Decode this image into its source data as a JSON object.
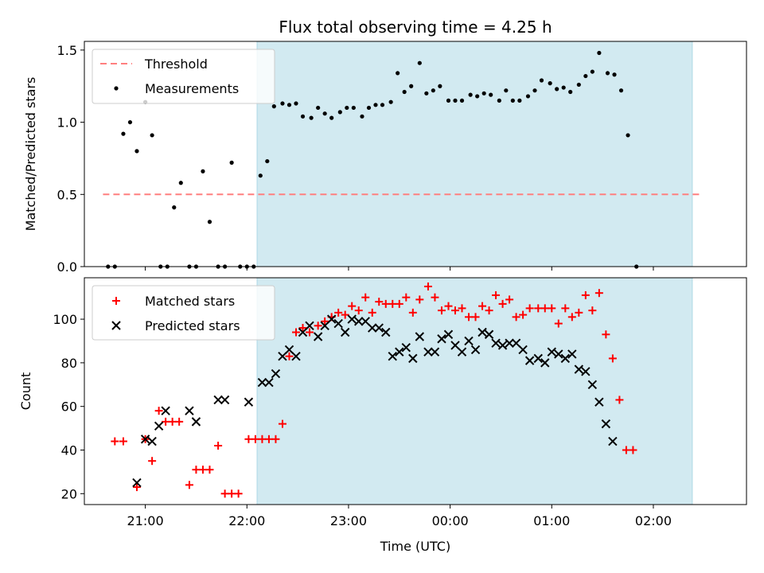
{
  "title": "Flux total observing time = 4.25 h",
  "colors": {
    "background": "#ffffff",
    "span": "#add8e6",
    "threshold": "#ff7f7f",
    "measurement": "#000000",
    "matched": "#ff0000",
    "predicted": "#000000"
  },
  "chart_data": [
    {
      "type": "scatter",
      "ylabel": "Matched/Predicted stars",
      "ylim": [
        0,
        1.56
      ],
      "yticks": [
        0,
        0.5,
        1.0,
        1.5
      ],
      "yticklabels": [
        "0.0",
        "0.5",
        "1.0",
        "1.5"
      ],
      "xlim": [
        "20:24",
        "02:55"
      ],
      "shaded_span": [
        "22:06",
        "02:23"
      ],
      "legend": {
        "placement": "top-left",
        "entries": [
          {
            "label": "Threshold",
            "style": "dashed-line"
          },
          {
            "label": "Measurements",
            "style": "dot"
          }
        ]
      },
      "threshold": {
        "y": 0.5,
        "x_range": [
          "20:35",
          "02:28"
        ]
      },
      "series": [
        {
          "name": "Measurements",
          "points": [
            [
              "20:38",
              0.0
            ],
            [
              "20:42",
              0.0
            ],
            [
              "20:47",
              0.92
            ],
            [
              "20:51",
              1.0
            ],
            [
              "20:55",
              0.8
            ],
            [
              "21:00",
              1.14
            ],
            [
              "21:04",
              0.91
            ],
            [
              "21:09",
              0.0
            ],
            [
              "21:13",
              0.0
            ],
            [
              "21:17",
              0.41
            ],
            [
              "21:21",
              0.58
            ],
            [
              "21:26",
              0.0
            ],
            [
              "21:30",
              0.0
            ],
            [
              "21:34",
              0.66
            ],
            [
              "21:38",
              0.31
            ],
            [
              "21:43",
              0.0
            ],
            [
              "21:47",
              0.0
            ],
            [
              "21:51",
              0.72
            ],
            [
              "21:56",
              0.0
            ],
            [
              "22:00",
              0.0
            ],
            [
              "22:04",
              0.0
            ],
            [
              "22:08",
              0.63
            ],
            [
              "22:12",
              0.73
            ],
            [
              "22:16",
              1.11
            ],
            [
              "22:21",
              1.13
            ],
            [
              "22:25",
              1.12
            ],
            [
              "22:29",
              1.13
            ],
            [
              "22:33",
              1.04
            ],
            [
              "22:38",
              1.03
            ],
            [
              "22:42",
              1.1
            ],
            [
              "22:46",
              1.06
            ],
            [
              "22:50",
              1.03
            ],
            [
              "22:55",
              1.07
            ],
            [
              "22:59",
              1.1
            ],
            [
              "23:03",
              1.1
            ],
            [
              "23:08",
              1.04
            ],
            [
              "23:12",
              1.1
            ],
            [
              "23:16",
              1.12
            ],
            [
              "23:20",
              1.12
            ],
            [
              "23:25",
              1.14
            ],
            [
              "23:29",
              1.34
            ],
            [
              "23:33",
              1.21
            ],
            [
              "23:37",
              1.25
            ],
            [
              "23:42",
              1.41
            ],
            [
              "23:46",
              1.2
            ],
            [
              "23:50",
              1.22
            ],
            [
              "23:54",
              1.25
            ],
            [
              "23:59",
              1.15
            ],
            [
              "00:03",
              1.15
            ],
            [
              "00:07",
              1.15
            ],
            [
              "00:12",
              1.19
            ],
            [
              "00:16",
              1.18
            ],
            [
              "00:20",
              1.2
            ],
            [
              "00:24",
              1.19
            ],
            [
              "00:29",
              1.15
            ],
            [
              "00:33",
              1.22
            ],
            [
              "00:37",
              1.15
            ],
            [
              "00:41",
              1.15
            ],
            [
              "00:46",
              1.18
            ],
            [
              "00:50",
              1.22
            ],
            [
              "00:54",
              1.29
            ],
            [
              "00:59",
              1.27
            ],
            [
              "01:03",
              1.23
            ],
            [
              "01:07",
              1.24
            ],
            [
              "01:11",
              1.21
            ],
            [
              "01:16",
              1.26
            ],
            [
              "01:20",
              1.32
            ],
            [
              "01:24",
              1.35
            ],
            [
              "01:28",
              1.48
            ],
            [
              "01:33",
              1.34
            ],
            [
              "01:37",
              1.33
            ],
            [
              "01:41",
              1.22
            ],
            [
              "01:45",
              0.91
            ],
            [
              "01:50",
              0.0
            ]
          ]
        }
      ]
    },
    {
      "type": "scatter",
      "xlabel": "Time (UTC)",
      "ylabel": "Count",
      "ylim": [
        15,
        119
      ],
      "yticks": [
        20,
        40,
        60,
        80,
        100
      ],
      "yticklabels": [
        "20",
        "40",
        "60",
        "80",
        "100"
      ],
      "xlim": [
        "20:24",
        "02:55"
      ],
      "xticks": [
        "21:00",
        "22:00",
        "23:00",
        "00:00",
        "01:00",
        "02:00"
      ],
      "shaded_span": [
        "22:06",
        "02:23"
      ],
      "legend": {
        "placement": "top-left",
        "entries": [
          {
            "label": "Matched stars",
            "style": "plus"
          },
          {
            "label": "Predicted stars",
            "style": "x"
          }
        ]
      },
      "series": [
        {
          "name": "Matched stars",
          "points": [
            [
              "20:42",
              44
            ],
            [
              "20:47",
              44
            ],
            [
              "20:55",
              23
            ],
            [
              "21:00",
              45
            ],
            [
              "21:04",
              35
            ],
            [
              "21:08",
              58
            ],
            [
              "21:12",
              53
            ],
            [
              "21:16",
              53
            ],
            [
              "21:20",
              53
            ],
            [
              "21:26",
              24
            ],
            [
              "21:30",
              31
            ],
            [
              "21:34",
              31
            ],
            [
              "21:38",
              31
            ],
            [
              "21:43",
              42
            ],
            [
              "21:47",
              20
            ],
            [
              "21:51",
              20
            ],
            [
              "21:55",
              20
            ],
            [
              "22:01",
              45
            ],
            [
              "22:05",
              45
            ],
            [
              "22:09",
              45
            ],
            [
              "22:13",
              45
            ],
            [
              "22:17",
              45
            ],
            [
              "22:21",
              52
            ],
            [
              "22:25",
              83
            ],
            [
              "22:29",
              94
            ],
            [
              "22:33",
              96
            ],
            [
              "22:37",
              94
            ],
            [
              "22:42",
              97
            ],
            [
              "22:46",
              99
            ],
            [
              "22:50",
              101
            ],
            [
              "22:54",
              103
            ],
            [
              "22:58",
              102
            ],
            [
              "23:02",
              106
            ],
            [
              "23:06",
              104
            ],
            [
              "23:10",
              110
            ],
            [
              "23:14",
              103
            ],
            [
              "23:18",
              108
            ],
            [
              "23:22",
              107
            ],
            [
              "23:26",
              107
            ],
            [
              "23:30",
              107
            ],
            [
              "23:34",
              110
            ],
            [
              "23:38",
              103
            ],
            [
              "23:42",
              109
            ],
            [
              "23:47",
              115
            ],
            [
              "23:51",
              110
            ],
            [
              "23:55",
              104
            ],
            [
              "23:59",
              106
            ],
            [
              "00:03",
              104
            ],
            [
              "00:07",
              105
            ],
            [
              "00:11",
              101
            ],
            [
              "00:15",
              101
            ],
            [
              "00:19",
              106
            ],
            [
              "00:23",
              104
            ],
            [
              "00:27",
              111
            ],
            [
              "00:31",
              107
            ],
            [
              "00:35",
              109
            ],
            [
              "00:39",
              101
            ],
            [
              "00:43",
              102
            ],
            [
              "00:47",
              105
            ],
            [
              "00:52",
              105
            ],
            [
              "00:56",
              105
            ],
            [
              "01:00",
              105
            ],
            [
              "01:04",
              98
            ],
            [
              "01:08",
              105
            ],
            [
              "01:12",
              101
            ],
            [
              "01:16",
              103
            ],
            [
              "01:20",
              111
            ],
            [
              "01:24",
              104
            ],
            [
              "01:28",
              112
            ],
            [
              "01:32",
              93
            ],
            [
              "01:36",
              82
            ],
            [
              "01:40",
              63
            ],
            [
              "01:44",
              40
            ],
            [
              "01:48",
              40
            ]
          ]
        },
        {
          "name": "Predicted stars",
          "points": [
            [
              "20:55",
              25
            ],
            [
              "21:00",
              45
            ],
            [
              "21:04",
              44
            ],
            [
              "21:08",
              51
            ],
            [
              "21:12",
              58
            ],
            [
              "21:26",
              58
            ],
            [
              "21:30",
              53
            ],
            [
              "21:43",
              63
            ],
            [
              "21:47",
              63
            ],
            [
              "22:01",
              62
            ],
            [
              "22:09",
              71
            ],
            [
              "22:13",
              71
            ],
            [
              "22:17",
              75
            ],
            [
              "22:21",
              83
            ],
            [
              "22:25",
              86
            ],
            [
              "22:29",
              83
            ],
            [
              "22:33",
              94
            ],
            [
              "22:37",
              97
            ],
            [
              "22:42",
              92
            ],
            [
              "22:46",
              97
            ],
            [
              "22:50",
              100
            ],
            [
              "22:54",
              98
            ],
            [
              "22:58",
              94
            ],
            [
              "23:02",
              100
            ],
            [
              "23:06",
              99
            ],
            [
              "23:10",
              99
            ],
            [
              "23:14",
              96
            ],
            [
              "23:18",
              96
            ],
            [
              "23:22",
              94
            ],
            [
              "23:26",
              83
            ],
            [
              "23:30",
              85
            ],
            [
              "23:34",
              87
            ],
            [
              "23:38",
              82
            ],
            [
              "23:42",
              92
            ],
            [
              "23:47",
              85
            ],
            [
              "23:51",
              85
            ],
            [
              "23:55",
              91
            ],
            [
              "23:59",
              93
            ],
            [
              "00:03",
              88
            ],
            [
              "00:07",
              85
            ],
            [
              "00:11",
              90
            ],
            [
              "00:15",
              86
            ],
            [
              "00:19",
              94
            ],
            [
              "00:23",
              93
            ],
            [
              "00:27",
              89
            ],
            [
              "00:31",
              88
            ],
            [
              "00:35",
              89
            ],
            [
              "00:39",
              89
            ],
            [
              "00:43",
              86
            ],
            [
              "00:47",
              81
            ],
            [
              "00:52",
              82
            ],
            [
              "00:56",
              80
            ],
            [
              "01:00",
              85
            ],
            [
              "01:04",
              84
            ],
            [
              "01:08",
              82
            ],
            [
              "01:12",
              84
            ],
            [
              "01:16",
              77
            ],
            [
              "01:20",
              76
            ],
            [
              "01:24",
              70
            ],
            [
              "01:28",
              62
            ],
            [
              "01:32",
              52
            ],
            [
              "01:36",
              44
            ]
          ]
        }
      ]
    }
  ]
}
